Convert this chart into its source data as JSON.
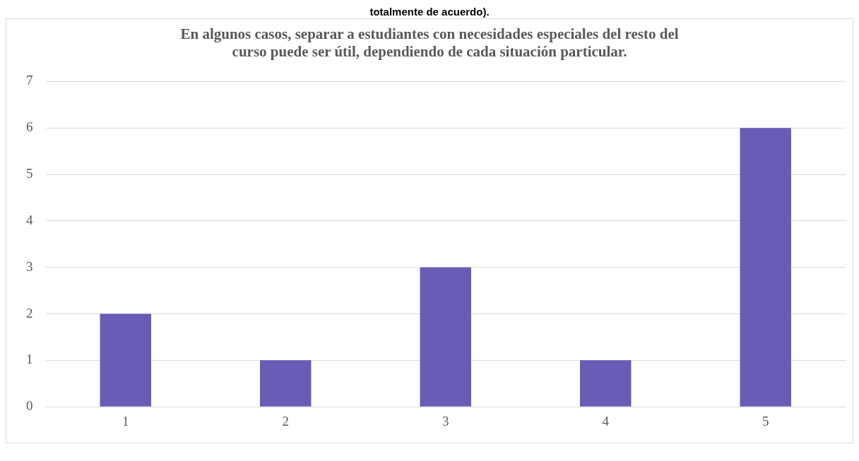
{
  "chart_data": {
    "type": "bar",
    "title": "En algunos casos, separar a estudiantes con necesidades especiales del resto del curso puede ser útil, dependiendo de cada situación particular.",
    "annotations": [
      "totalmente de acuerdo)."
    ],
    "categories": [
      "1",
      "2",
      "3",
      "4",
      "5"
    ],
    "values": [
      2,
      1,
      3,
      1,
      6
    ],
    "color": "#675db7",
    "ylim": [
      0,
      7
    ],
    "yticks": [
      0,
      1,
      2,
      3,
      4,
      5,
      6,
      7
    ],
    "grid": "y",
    "legend": false
  }
}
